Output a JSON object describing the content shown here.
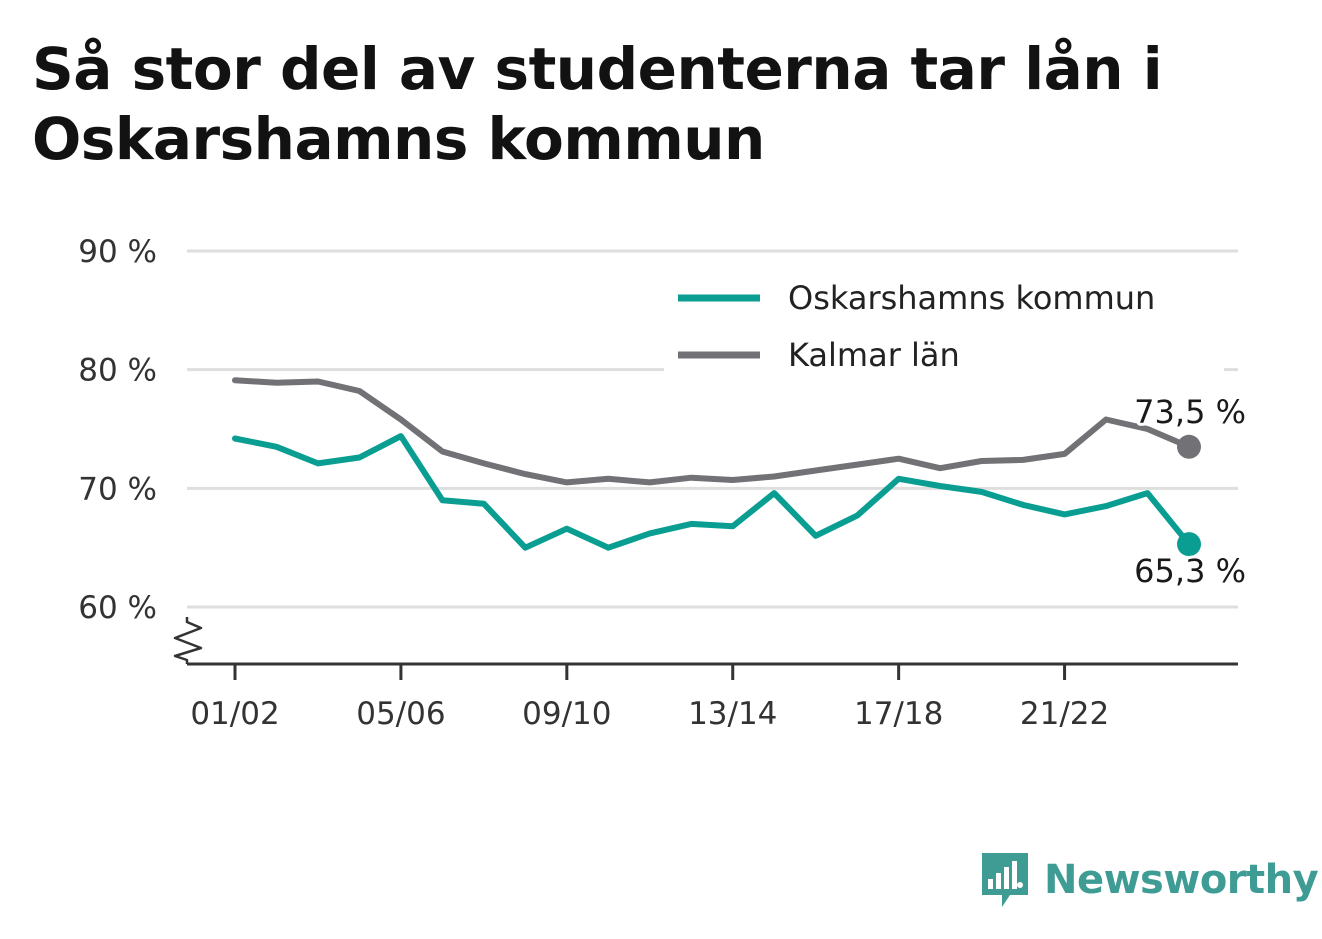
{
  "title": "Så stor del av studenterna tar lån i Oskarshamns kommun",
  "brand": {
    "name": "Newsworthy"
  },
  "colors": {
    "oskarshamn": "#0a9e92",
    "kalmar": "#727276",
    "grid": "#dedede",
    "axis": "#333333"
  },
  "chart_data": {
    "type": "line",
    "title": "Så stor del av studenterna tar lån i Oskarshamns kommun",
    "xlabel": "",
    "ylabel": "",
    "ylim": [
      55,
      90
    ],
    "y_ticks": [
      60,
      70,
      80,
      90
    ],
    "y_tick_suffix": " %",
    "y_axis_broken": true,
    "x_categories": [
      "01/02",
      "02/03",
      "03/04",
      "04/05",
      "05/06",
      "06/07",
      "07/08",
      "08/09",
      "09/10",
      "10/11",
      "11/12",
      "12/13",
      "13/14",
      "14/15",
      "15/16",
      "16/17",
      "17/18",
      "18/19",
      "19/20",
      "20/21",
      "21/22",
      "22/23",
      "23/24",
      "24/25"
    ],
    "x_tick_labels": [
      "01/02",
      "05/06",
      "09/10",
      "13/14",
      "17/18",
      "21/22"
    ],
    "grid": true,
    "legend_position": "top-right",
    "series": [
      {
        "name": "Oskarshamns kommun",
        "color": "#0a9e92",
        "values": [
          74.2,
          73.5,
          72.1,
          72.6,
          74.4,
          69.0,
          68.7,
          65.0,
          66.6,
          65.0,
          66.2,
          67.0,
          66.8,
          69.6,
          66.0,
          67.7,
          70.8,
          70.2,
          69.7,
          68.6,
          67.8,
          68.5,
          69.6,
          65.3
        ],
        "end_label": "65,3 %"
      },
      {
        "name": "Kalmar län",
        "color": "#727276",
        "values": [
          79.1,
          78.9,
          79.0,
          78.2,
          75.8,
          73.1,
          72.1,
          71.2,
          70.5,
          70.8,
          70.5,
          70.9,
          70.7,
          71.0,
          71.5,
          72.0,
          72.5,
          71.7,
          72.3,
          72.4,
          72.9,
          75.8,
          75.0,
          73.5
        ],
        "end_label": "73,5 %"
      }
    ]
  }
}
